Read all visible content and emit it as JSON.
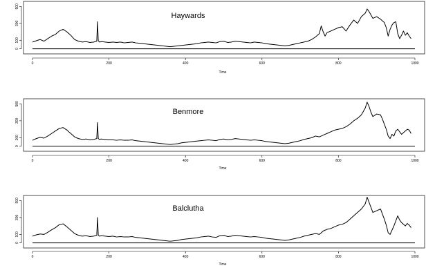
{
  "chart_data": [
    {
      "type": "line",
      "title": "Haywards",
      "xlabel": "Time",
      "ylabel": "",
      "xlim": [
        0,
        1000
      ],
      "ylim": [
        -60,
        560
      ],
      "x_ticks": [
        0,
        200,
        400,
        600,
        800,
        1000
      ],
      "x_tick_labels": [
        "0",
        "200",
        "400",
        "600",
        "800",
        "1000"
      ],
      "y_ticks": [
        0,
        100,
        300,
        500
      ],
      "y_tick_labels": [
        "0",
        "100",
        "300",
        "500"
      ],
      "baseline": 0,
      "color": "#000000",
      "x": [
        0,
        10,
        20,
        30,
        40,
        50,
        60,
        70,
        80,
        90,
        100,
        110,
        120,
        130,
        140,
        150,
        160,
        168,
        170,
        172,
        175,
        180,
        190,
        200,
        210,
        220,
        230,
        240,
        250,
        260,
        270,
        280,
        290,
        300,
        310,
        320,
        330,
        340,
        350,
        360,
        370,
        380,
        390,
        400,
        410,
        420,
        430,
        440,
        450,
        460,
        470,
        480,
        490,
        500,
        510,
        520,
        530,
        540,
        550,
        560,
        570,
        580,
        590,
        600,
        610,
        620,
        630,
        640,
        650,
        660,
        670,
        680,
        690,
        700,
        710,
        720,
        730,
        740,
        750,
        755,
        760,
        765,
        770,
        780,
        790,
        800,
        810,
        820,
        830,
        840,
        850,
        860,
        870,
        875,
        880,
        885,
        890,
        900,
        910,
        915,
        920,
        925,
        930,
        935,
        940,
        945,
        950,
        955,
        960,
        965,
        970,
        975,
        980,
        985,
        990
      ],
      "values": [
        80,
        95,
        110,
        90,
        120,
        150,
        170,
        210,
        230,
        200,
        160,
        110,
        90,
        80,
        85,
        75,
        80,
        90,
        320,
        95,
        80,
        85,
        80,
        75,
        80,
        75,
        80,
        70,
        75,
        80,
        70,
        65,
        60,
        55,
        50,
        45,
        40,
        35,
        30,
        25,
        30,
        35,
        40,
        45,
        50,
        55,
        60,
        70,
        75,
        80,
        75,
        70,
        85,
        90,
        75,
        80,
        90,
        85,
        80,
        75,
        70,
        80,
        75,
        70,
        60,
        55,
        50,
        45,
        40,
        35,
        40,
        50,
        60,
        70,
        80,
        90,
        110,
        140,
        180,
        270,
        200,
        150,
        190,
        210,
        230,
        250,
        260,
        210,
        280,
        340,
        300,
        380,
        420,
        470,
        440,
        400,
        360,
        380,
        350,
        330,
        310,
        250,
        150,
        230,
        280,
        310,
        320,
        180,
        120,
        160,
        210,
        160,
        190,
        150,
        120
      ]
    },
    {
      "type": "line",
      "title": "Benmore",
      "xlabel": "Time",
      "ylabel": "",
      "xlim": [
        0,
        1000
      ],
      "ylim": [
        -60,
        560
      ],
      "x_ticks": [
        0,
        200,
        400,
        600,
        800,
        1000
      ],
      "x_tick_labels": [
        "0",
        "200",
        "400",
        "600",
        "800",
        "1000"
      ],
      "y_ticks": [
        0,
        100,
        300,
        500
      ],
      "y_tick_labels": [
        "0",
        "100",
        "300",
        "500"
      ],
      "baseline": 0,
      "color": "#000000",
      "x": [
        0,
        10,
        20,
        30,
        40,
        50,
        60,
        70,
        80,
        90,
        100,
        110,
        120,
        130,
        140,
        150,
        160,
        168,
        170,
        172,
        175,
        180,
        190,
        200,
        210,
        220,
        230,
        240,
        250,
        260,
        270,
        280,
        290,
        300,
        310,
        320,
        330,
        340,
        350,
        360,
        370,
        380,
        390,
        400,
        410,
        420,
        430,
        440,
        450,
        460,
        470,
        480,
        490,
        500,
        510,
        520,
        530,
        540,
        550,
        560,
        570,
        580,
        590,
        600,
        610,
        620,
        630,
        640,
        650,
        660,
        670,
        680,
        690,
        700,
        710,
        720,
        730,
        740,
        750,
        755,
        760,
        765,
        770,
        780,
        790,
        800,
        810,
        820,
        830,
        840,
        850,
        860,
        870,
        875,
        880,
        885,
        890,
        900,
        910,
        915,
        920,
        925,
        930,
        935,
        940,
        945,
        950,
        955,
        960,
        965,
        970,
        975,
        980,
        985,
        990
      ],
      "values": [
        70,
        90,
        105,
        95,
        120,
        150,
        180,
        210,
        220,
        190,
        150,
        110,
        90,
        80,
        85,
        75,
        80,
        90,
        280,
        90,
        80,
        85,
        80,
        75,
        75,
        70,
        75,
        70,
        70,
        75,
        65,
        60,
        55,
        50,
        45,
        40,
        35,
        30,
        25,
        20,
        25,
        30,
        40,
        45,
        50,
        55,
        60,
        65,
        70,
        75,
        70,
        65,
        80,
        85,
        75,
        80,
        90,
        85,
        80,
        75,
        70,
        75,
        70,
        65,
        55,
        50,
        45,
        40,
        35,
        30,
        35,
        45,
        55,
        65,
        80,
        90,
        100,
        120,
        110,
        120,
        130,
        140,
        150,
        170,
        190,
        200,
        210,
        230,
        260,
        300,
        330,
        370,
        450,
        520,
        470,
        400,
        350,
        380,
        370,
        320,
        260,
        200,
        120,
        90,
        140,
        120,
        180,
        200,
        170,
        140,
        160,
        180,
        200,
        190,
        150
      ]
    },
    {
      "type": "line",
      "title": "Balclutha",
      "xlabel": "Time",
      "ylabel": "",
      "xlim": [
        0,
        1000
      ],
      "ylim": [
        -60,
        560
      ],
      "x_ticks": [
        0,
        200,
        400,
        600,
        800,
        1000
      ],
      "x_tick_labels": [
        "0",
        "200",
        "400",
        "600",
        "800",
        "1000"
      ],
      "y_ticks": [
        0,
        100,
        300,
        500
      ],
      "y_tick_labels": [
        "0",
        "100",
        "300",
        "500"
      ],
      "baseline": 0,
      "color": "#000000",
      "x": [
        0,
        10,
        20,
        30,
        40,
        50,
        60,
        70,
        80,
        90,
        100,
        110,
        120,
        130,
        140,
        150,
        160,
        168,
        170,
        172,
        175,
        180,
        190,
        200,
        210,
        220,
        230,
        240,
        250,
        260,
        270,
        280,
        290,
        300,
        310,
        320,
        330,
        340,
        350,
        360,
        370,
        380,
        390,
        400,
        410,
        420,
        430,
        440,
        450,
        460,
        470,
        480,
        490,
        500,
        510,
        520,
        530,
        540,
        550,
        560,
        570,
        580,
        590,
        600,
        610,
        620,
        630,
        640,
        650,
        660,
        670,
        680,
        690,
        700,
        710,
        720,
        730,
        740,
        750,
        755,
        760,
        765,
        770,
        780,
        790,
        800,
        810,
        820,
        830,
        840,
        850,
        860,
        870,
        875,
        880,
        885,
        890,
        900,
        910,
        915,
        920,
        925,
        930,
        935,
        940,
        945,
        950,
        955,
        960,
        965,
        970,
        975,
        980,
        985,
        990
      ],
      "values": [
        80,
        95,
        105,
        100,
        125,
        155,
        180,
        215,
        225,
        190,
        150,
        110,
        90,
        80,
        85,
        75,
        80,
        90,
        300,
        90,
        80,
        85,
        80,
        75,
        80,
        70,
        75,
        70,
        70,
        75,
        65,
        60,
        55,
        50,
        45,
        40,
        35,
        30,
        25,
        20,
        25,
        30,
        40,
        45,
        50,
        55,
        60,
        70,
        75,
        80,
        70,
        65,
        85,
        90,
        75,
        80,
        90,
        85,
        80,
        75,
        70,
        75,
        70,
        65,
        55,
        50,
        45,
        40,
        35,
        30,
        35,
        45,
        55,
        65,
        80,
        90,
        100,
        110,
        100,
        120,
        140,
        150,
        160,
        170,
        190,
        210,
        220,
        240,
        280,
        320,
        360,
        400,
        460,
        540,
        480,
        420,
        360,
        380,
        400,
        340,
        280,
        210,
        120,
        100,
        150,
        200,
        260,
        320,
        270,
        240,
        220,
        200,
        230,
        210,
        180
      ]
    }
  ]
}
